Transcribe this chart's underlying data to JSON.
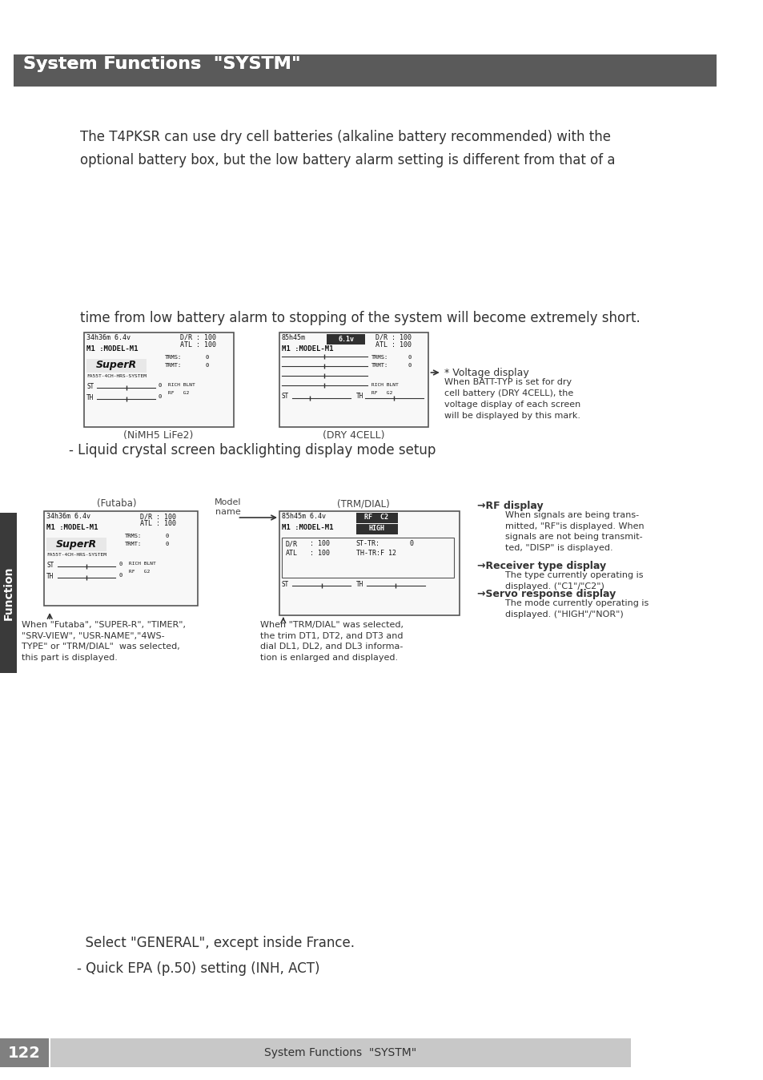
{
  "title": "System Functions  \"SYSTM\"",
  "title_bg": "#5a5a5a",
  "title_color": "#ffffff",
  "page_bg": "#ffffff",
  "footer_bg": "#c8c8c8",
  "footer_text": "System Functions  \"SYSTM\"",
  "page_number": "122",
  "page_number_bg": "#808080",
  "left_sidebar_text": "Function",
  "left_sidebar_bg": "#3a3a3a",
  "body_text_1": "The T4PKSR can use dry cell batteries (alkaline battery recommended) with the\noptional battery box, but the low battery alarm setting is different from that of a",
  "body_text_2": "time from low battery alarm to stopping of the system will become extremely short.",
  "body_text_3": "- Liquid crystal screen backlighting display mode setup",
  "label_nimh": "(NiMH5 LiFe2)",
  "label_dry": "(DRY 4CELL)",
  "voltage_display_title": "* Voltage display",
  "voltage_display_text": "When BATT-TYP is set for dry\ncell battery (DRY 4CELL), the\nvoltage display of each screen\nwill be displayed by this mark.",
  "futaba_label": "(Futaba)",
  "model_name_label": "Model\nname",
  "trmdial_label": "(TRM/DIAL)",
  "rf_display_title": "→RF display",
  "rf_display_text": "When signals are being trans-\nmitted, \"RF\"is displayed. When\nsignals are not being transmit-\nted, \"DISP\" is displayed.",
  "receiver_type_title": "→Receiver type display",
  "receiver_type_text": "The type currently operating is\ndisplayed. (\"C1\"/\"C2\")",
  "servo_response_title": "→Servo response display",
  "servo_response_text": "The mode currently operating is\ndisplayed. (\"HIGH\"/\"NOR\")",
  "futaba_caption": "When \"Futaba\", \"SUPER-R\", \"TIMER\",\n\"SRV-VIEW\", \"USR-NAME\",\"4WS-\nTYPE\" or \"TRM/DIAL\"  was selected,\nthis part is displayed.",
  "trmdial_caption": "When \"TRM/DIAL\" was selected,\nthe trim DT1, DT2, and DT3 and\ndial DL1, DL2, and DL3 informa-\ntion is enlarged and displayed.",
  "bottom_text_1": "  Select \"GENERAL\", except inside France.",
  "bottom_text_2": "- Quick EPA (p.50) setting (INH, ACT)"
}
